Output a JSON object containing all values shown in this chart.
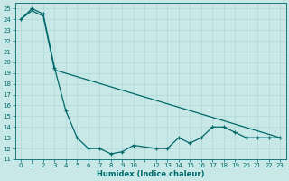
{
  "xlabel": "Humidex (Indice chaleur)",
  "background_color": "#c8e8e8",
  "grid_color": "#b0d8d8",
  "line_color": "#006868",
  "xlim": [
    -0.5,
    23.5
  ],
  "ylim": [
    11,
    25.5
  ],
  "yticks": [
    11,
    12,
    13,
    14,
    15,
    16,
    17,
    18,
    19,
    20,
    21,
    22,
    23,
    24,
    25
  ],
  "xtick_labels": [
    "0",
    "1",
    "2",
    "3",
    "4",
    "5",
    "6",
    "7",
    "8",
    "9",
    "10",
    "",
    "12",
    "13",
    "14",
    "15",
    "16",
    "17",
    "18",
    "19",
    "20",
    "21",
    "22",
    "23"
  ],
  "line1_x": [
    0,
    1,
    2,
    3,
    4,
    5,
    6,
    7,
    8,
    9,
    10,
    12,
    13,
    14,
    15,
    16,
    17,
    18,
    19,
    20,
    21,
    22,
    23
  ],
  "line1_y": [
    24.0,
    25.0,
    24.5,
    19.5,
    15.5,
    13.0,
    12.0,
    12.0,
    11.5,
    11.7,
    12.3,
    12.0,
    12.0,
    13.0,
    12.5,
    13.0,
    14.0,
    14.0,
    13.5,
    13.0,
    13.0,
    13.0,
    13.0
  ],
  "line2_x": [
    0,
    1,
    2,
    3,
    23
  ],
  "line2_y": [
    24.0,
    24.8,
    24.3,
    19.3,
    13.0
  ],
  "figwidth": 3.2,
  "figheight": 2.0,
  "dpi": 100
}
